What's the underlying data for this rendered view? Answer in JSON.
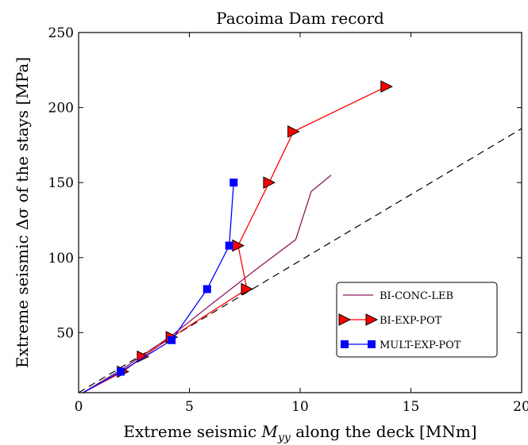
{
  "chart_data": {
    "type": "line",
    "title": "Pacoima Dam record",
    "xlabel": "Extreme seismic M_yy along the deck [MNm]",
    "xlabel_parts": {
      "pre": "Extreme seismic ",
      "sym": "M",
      "sub": "yy",
      "post": " along the deck [MNm]"
    },
    "ylabel": "Extreme seismic Δσ of the stays [MPa]",
    "xlim": [
      0,
      20
    ],
    "ylim": [
      10,
      250
    ],
    "x_ticks": [
      0,
      5,
      10,
      15,
      20
    ],
    "x_tick_labels": [
      "0",
      "5",
      "10",
      "15",
      "20"
    ],
    "y_ticks": [
      50,
      100,
      150,
      200,
      250
    ],
    "y_tick_labels": [
      "50",
      "100",
      "150",
      "200",
      "250"
    ],
    "grid": false,
    "legend_position": "bottom-right",
    "series": [
      {
        "name": "BI-CONC-LEB",
        "color": "#8b1a5e",
        "marker": "none",
        "line_style": "solid",
        "x": [
          0.2,
          2.0,
          4.2,
          6.0,
          8.0,
          9.8,
          10.5,
          11.4
        ],
        "y": [
          10,
          26,
          48,
          69,
          92,
          112,
          144,
          155
        ]
      },
      {
        "name": "BI-EXP-POT",
        "color": "#ff0000",
        "marker": "triangle-right",
        "line_style": "solid",
        "x": [
          0.2,
          2.0,
          2.9,
          4.2,
          7.6,
          7.2,
          8.6,
          9.7,
          13.9
        ],
        "y": [
          10,
          24,
          34,
          47,
          79,
          108,
          150,
          184,
          214
        ]
      },
      {
        "name": "MULT-EXP-POT",
        "color": "#0000ff",
        "marker": "square",
        "line_style": "solid",
        "x": [
          0.2,
          1.9,
          4.2,
          5.8,
          6.8,
          7.0
        ],
        "y": [
          10,
          24,
          45,
          79,
          108,
          150
        ]
      },
      {
        "name": "",
        "color": "#000000",
        "marker": "none",
        "line_style": "dashed",
        "x": [
          0,
          20
        ],
        "y": [
          10,
          186
        ]
      }
    ]
  }
}
